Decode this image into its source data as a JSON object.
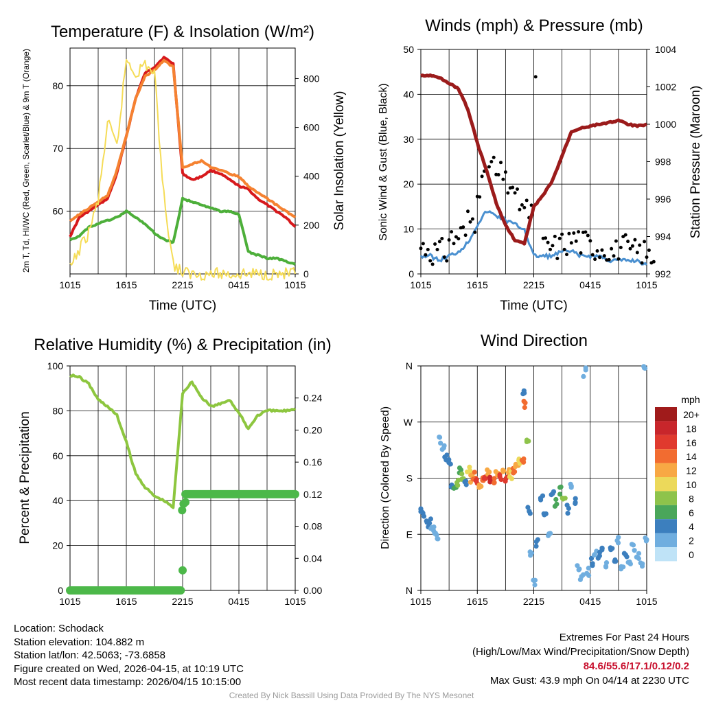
{
  "chart_data": [
    {
      "type": "line",
      "title": "Temperature (F) & Insolation (W/m²)",
      "xlabel": "Time (UTC)",
      "ylabel": "2m T, Td, HI/WC (Red, Green, Scarlet/Blue) & 9m T (Orange)",
      "y2label": "Solar Insolation (Yellow)",
      "x_ticks": [
        "1015",
        "1615",
        "2215",
        "0415",
        "1015"
      ],
      "ylim": [
        50,
        86
      ],
      "y_ticks": [
        60,
        70,
        80
      ],
      "y2lim": [
        0,
        925
      ],
      "y2_ticks": [
        0,
        200,
        400,
        600,
        800
      ],
      "x": [
        0,
        1,
        2,
        3,
        4,
        5,
        6,
        7,
        8,
        9,
        10,
        11,
        12,
        13,
        14,
        15,
        16,
        17,
        18,
        19,
        20,
        21,
        22,
        23,
        24
      ],
      "series": [
        {
          "name": "2m Temperature",
          "color": "#d7191c",
          "axis": "left",
          "values": [
            56.0,
            59.0,
            60.0,
            61.0,
            62.0,
            66.0,
            72.0,
            78.0,
            82.0,
            83.0,
            84.5,
            83.5,
            66.0,
            65.0,
            65.5,
            66.5,
            66.0,
            65.0,
            64.0,
            63.5,
            62.0,
            61.0,
            60.0,
            59.0,
            57.5
          ]
        },
        {
          "name": "9m Temperature",
          "color": "#f58231",
          "axis": "left",
          "values": [
            58.5,
            59.5,
            60.5,
            61.5,
            62.5,
            66.5,
            72.0,
            78.0,
            81.5,
            82.5,
            84.0,
            83.0,
            67.0,
            67.5,
            68.0,
            67.0,
            66.5,
            66.0,
            65.5,
            64.0,
            63.0,
            62.0,
            61.0,
            60.0,
            59.0
          ]
        },
        {
          "name": "Dew Point",
          "color": "#4daf3a",
          "axis": "left",
          "values": [
            55.5,
            56.0,
            57.5,
            58.0,
            58.5,
            59.0,
            60.0,
            59.0,
            58.0,
            56.5,
            55.5,
            55.0,
            62.0,
            61.5,
            61.0,
            60.5,
            60.0,
            60.0,
            59.5,
            53.5,
            53.0,
            52.5,
            52.5,
            52.0,
            51.5
          ]
        },
        {
          "name": "Solar Insolation",
          "color": "#f5dc56",
          "axis": "right",
          "values": [
            20,
            100,
            170,
            300,
            620,
            520,
            880,
            820,
            860,
            820,
            320,
            40,
            5,
            0,
            0,
            0,
            0,
            0,
            0,
            0,
            0,
            0,
            0,
            0,
            0
          ]
        }
      ]
    },
    {
      "type": "line",
      "title": "Winds (mph) & Pressure (mb)",
      "xlabel": "Time (UTC)",
      "ylabel": "Sonic Wind & Gust (Blue, Black)",
      "y2label": "Station Pressure (Maroon)",
      "x_ticks": [
        "1015",
        "1615",
        "2215",
        "0415",
        "1015"
      ],
      "ylim": [
        0,
        50
      ],
      "y_ticks": [
        0,
        10,
        20,
        30,
        40,
        50
      ],
      "y2lim": [
        992,
        1004
      ],
      "y2_ticks": [
        992,
        994,
        996,
        998,
        1000,
        1002,
        1004
      ],
      "x": [
        0,
        1,
        2,
        3,
        4,
        5,
        6,
        7,
        8,
        9,
        10,
        11,
        12,
        13,
        14,
        15,
        16,
        17,
        18,
        19,
        20,
        21,
        22,
        23,
        24
      ],
      "series": [
        {
          "name": "Sonic Wind",
          "color": "#4a90d0",
          "axis": "left",
          "values": [
            4,
            4,
            3,
            4,
            5,
            7,
            11,
            14,
            13,
            12,
            11,
            10,
            4,
            4,
            4,
            5,
            5,
            4,
            4,
            4,
            3,
            3,
            3,
            3,
            2
          ]
        },
        {
          "name": "Gust",
          "color": "#000000",
          "axis": "left",
          "values": [
            6,
            5,
            5,
            8,
            9,
            12,
            20,
            24,
            22,
            20,
            16,
            14,
            43.9,
            6,
            6,
            7,
            8,
            7,
            6,
            6,
            5,
            6,
            5,
            5,
            4
          ]
        },
        {
          "name": "Station Pressure",
          "color": "#9b1b1b",
          "axis": "right",
          "values": [
            1002.6,
            1002.6,
            1002.5,
            1002.2,
            1001.9,
            1000.8,
            999.0,
            997.5,
            995.8,
            994.6,
            993.8,
            993.6,
            995.6,
            996.2,
            997.0,
            998.3,
            999.6,
            999.8,
            999.9,
            1000.0,
            1000.1,
            1000.2,
            1000.0,
            999.9,
            1000.0
          ]
        }
      ]
    },
    {
      "type": "line",
      "title": "Relative Humidity (%) & Precipitation (in)",
      "xlabel": "",
      "ylabel": "Percent & Precipitation",
      "x_ticks": [
        "1015",
        "1615",
        "2215",
        "0415",
        "1015"
      ],
      "ylim": [
        0,
        100
      ],
      "y_ticks": [
        0,
        20,
        40,
        60,
        80,
        100
      ],
      "y2lim": [
        0,
        0.28
      ],
      "y2_ticks": [
        "0.00",
        "0.04",
        "0.08",
        "0.12",
        "0.16",
        "0.20",
        "0.24"
      ],
      "x": [
        0,
        1,
        2,
        3,
        4,
        5,
        6,
        7,
        8,
        9,
        10,
        11,
        12,
        13,
        14,
        15,
        16,
        17,
        18,
        19,
        20,
        21,
        22,
        23,
        24
      ],
      "series": [
        {
          "name": "Relative Humidity",
          "color": "#8dc63f",
          "axis": "left",
          "values": [
            96,
            95,
            92,
            85,
            82,
            78,
            66,
            52,
            46,
            42,
            40,
            37,
            88,
            93,
            86,
            82,
            83,
            85,
            79,
            72,
            78,
            80,
            80,
            80,
            81
          ]
        },
        {
          "name": "Precipitation",
          "color": "#4cb849",
          "axis": "right",
          "values": [
            0,
            0,
            0,
            0,
            0,
            0,
            0,
            0,
            0,
            0,
            0,
            0,
            0.12,
            0.12,
            0.12,
            0.12,
            0.12,
            0.12,
            0.12,
            0.12,
            0.12,
            0.12,
            0.12,
            0.12,
            0.12
          ]
        }
      ]
    },
    {
      "type": "scatter",
      "title": "Wind Direction",
      "xlabel": "",
      "ylabel": "Direction (Colored By Speed)",
      "x_ticks": [
        "1015",
        "1615",
        "2215",
        "0415",
        "1015"
      ],
      "y_ticks": [
        "N",
        "E",
        "S",
        "W",
        "N"
      ],
      "ylim": [
        0,
        360
      ],
      "legend_title": "mph",
      "legend_labels": [
        "20+",
        "18",
        "16",
        "14",
        "12",
        "10",
        "8",
        "6",
        "4",
        "2",
        "0"
      ],
      "legend_colors": [
        "#a01b1b",
        "#c8262b",
        "#e03a2e",
        "#f26c30",
        "#f8a844",
        "#ecd95a",
        "#8ec34b",
        "#4aa65a",
        "#3c7fbe",
        "#70aedf",
        "#bfe3f7"
      ],
      "points": [
        {
          "t": 0.0,
          "dir": 130,
          "spd": 3
        },
        {
          "t": 0.3,
          "dir": 120,
          "spd": 3
        },
        {
          "t": 0.6,
          "dir": 115,
          "spd": 4
        },
        {
          "t": 0.9,
          "dir": 108,
          "spd": 3
        },
        {
          "t": 1.2,
          "dir": 100,
          "spd": 2
        },
        {
          "t": 1.5,
          "dir": 95,
          "spd": 2
        },
        {
          "t": 1.8,
          "dir": 85,
          "spd": 2
        },
        {
          "t": 2.1,
          "dir": 240,
          "spd": 1
        },
        {
          "t": 2.4,
          "dir": 230,
          "spd": 2
        },
        {
          "t": 2.7,
          "dir": 215,
          "spd": 3
        },
        {
          "t": 3.0,
          "dir": 205,
          "spd": 4
        },
        {
          "t": 3.3,
          "dir": 170,
          "spd": 4
        },
        {
          "t": 3.6,
          "dir": 160,
          "spd": 5
        },
        {
          "t": 3.9,
          "dir": 175,
          "spd": 7
        },
        {
          "t": 4.2,
          "dir": 190,
          "spd": 6
        },
        {
          "t": 4.5,
          "dir": 180,
          "spd": 8
        },
        {
          "t": 4.8,
          "dir": 170,
          "spd": 4
        },
        {
          "t": 5.1,
          "dir": 195,
          "spd": 9
        },
        {
          "t": 5.4,
          "dir": 180,
          "spd": 11
        },
        {
          "t": 5.7,
          "dir": 185,
          "spd": 13
        },
        {
          "t": 6.0,
          "dir": 178,
          "spd": 15
        },
        {
          "t": 6.3,
          "dir": 172,
          "spd": 12
        },
        {
          "t": 6.6,
          "dir": 182,
          "spd": 14
        },
        {
          "t": 6.9,
          "dir": 176,
          "spd": 16
        },
        {
          "t": 7.2,
          "dir": 188,
          "spd": 12
        },
        {
          "t": 7.5,
          "dir": 180,
          "spd": 18
        },
        {
          "t": 7.8,
          "dir": 174,
          "spd": 13
        },
        {
          "t": 8.1,
          "dir": 185,
          "spd": 11
        },
        {
          "t": 8.4,
          "dir": 179,
          "spd": 16
        },
        {
          "t": 8.7,
          "dir": 186,
          "spd": 12
        },
        {
          "t": 9.0,
          "dir": 181,
          "spd": 15
        },
        {
          "t": 9.3,
          "dir": 190,
          "spd": 11
        },
        {
          "t": 9.6,
          "dir": 184,
          "spd": 10
        },
        {
          "t": 9.9,
          "dir": 195,
          "spd": 13
        },
        {
          "t": 10.2,
          "dir": 200,
          "spd": 12
        },
        {
          "t": 10.5,
          "dir": 205,
          "spd": 10
        },
        {
          "t": 10.8,
          "dir": 210,
          "spd": 13
        },
        {
          "t": 11.0,
          "dir": 320,
          "spd": 4
        },
        {
          "t": 11.1,
          "dir": 300,
          "spd": 14
        },
        {
          "t": 11.3,
          "dir": 245,
          "spd": 7
        },
        {
          "t": 11.5,
          "dir": 130,
          "spd": 3
        },
        {
          "t": 11.7,
          "dir": 60,
          "spd": 2
        },
        {
          "t": 12.0,
          "dir": 10,
          "spd": 2
        },
        {
          "t": 12.4,
          "dir": 75,
          "spd": 4
        },
        {
          "t": 12.8,
          "dir": 150,
          "spd": 3
        },
        {
          "t": 13.2,
          "dir": 120,
          "spd": 4
        },
        {
          "t": 13.6,
          "dir": 90,
          "spd": 2
        },
        {
          "t": 14.0,
          "dir": 155,
          "spd": 4
        },
        {
          "t": 14.4,
          "dir": 140,
          "spd": 6
        },
        {
          "t": 14.8,
          "dir": 160,
          "spd": 5
        },
        {
          "t": 15.2,
          "dir": 150,
          "spd": 8
        },
        {
          "t": 15.6,
          "dir": 130,
          "spd": 4
        },
        {
          "t": 16.0,
          "dir": 170,
          "spd": 2
        },
        {
          "t": 16.4,
          "dir": 145,
          "spd": 4
        },
        {
          "t": 16.8,
          "dir": 40,
          "spd": 2
        },
        {
          "t": 17.1,
          "dir": 20,
          "spd": 1
        },
        {
          "t": 17.4,
          "dir": 350,
          "spd": 2
        },
        {
          "t": 17.8,
          "dir": 30,
          "spd": 2
        },
        {
          "t": 18.2,
          "dir": 45,
          "spd": 3
        },
        {
          "t": 18.6,
          "dir": 60,
          "spd": 2
        },
        {
          "t": 19.0,
          "dir": 55,
          "spd": 4
        },
        {
          "t": 19.4,
          "dir": 70,
          "spd": 3
        },
        {
          "t": 19.8,
          "dir": 40,
          "spd": 2
        },
        {
          "t": 20.2,
          "dir": 65,
          "spd": 4
        },
        {
          "t": 20.6,
          "dir": 50,
          "spd": 3
        },
        {
          "t": 21.0,
          "dir": 80,
          "spd": 2
        },
        {
          "t": 21.4,
          "dir": 35,
          "spd": 2
        },
        {
          "t": 21.8,
          "dir": 60,
          "spd": 3
        },
        {
          "t": 22.2,
          "dir": 45,
          "spd": 2
        },
        {
          "t": 22.6,
          "dir": 70,
          "spd": 2
        },
        {
          "t": 23.0,
          "dir": 55,
          "spd": 2
        },
        {
          "t": 23.4,
          "dir": 40,
          "spd": 2
        },
        {
          "t": 23.8,
          "dir": 355,
          "spd": 1
        },
        {
          "t": 24.0,
          "dir": 85,
          "spd": 2
        }
      ]
    }
  ],
  "footer": {
    "location": "Location: Schodack",
    "elevation": "Station elevation: 104.882 m",
    "latlon": "Station lat/lon: 42.5063; -73.6858",
    "created": "Figure created on Wed, 2026-04-15, at 10:19 UTC",
    "recent": "Most recent data timestamp: 2026/04/15 10:15:00",
    "extremes_title": "Extremes For Past 24 Hours",
    "extremes_subtitle": "(High/Low/Max Wind/Precipitation/Snow Depth)",
    "extremes_values": "84.6/55.6/17.1/0.12/0.2",
    "max_gust": "Max Gust: 43.9 mph On 04/14 at 2230 UTC",
    "credit": "Created By Nick Bassill Using Data Provided By The NYS Mesonet"
  }
}
